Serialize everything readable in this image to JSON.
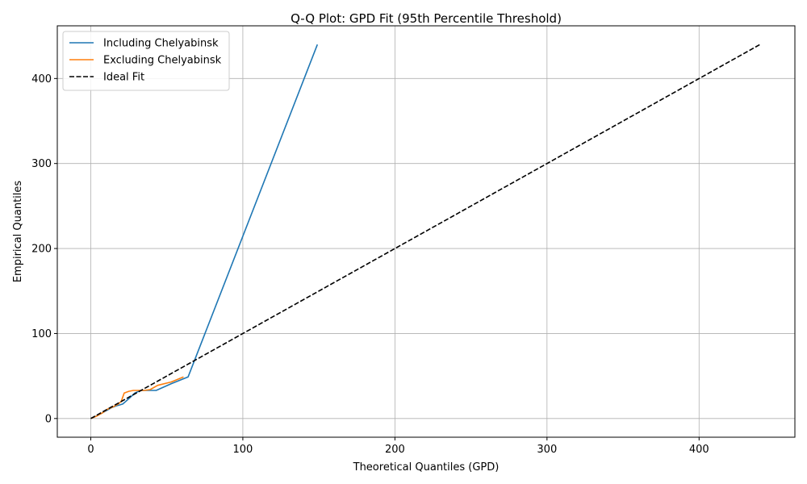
{
  "chart_data": {
    "type": "line",
    "title": "Q-Q Plot: GPD Fit (95th Percentile Threshold)",
    "xlabel": "Theoretical Quantiles (GPD)",
    "ylabel": "Empirical Quantiles",
    "xlim": [
      -22,
      463
    ],
    "ylim": [
      -22,
      462
    ],
    "xticks": [
      0,
      100,
      200,
      300,
      400
    ],
    "yticks": [
      0,
      100,
      200,
      300,
      400
    ],
    "grid": true,
    "legend_position": "top-left",
    "series": [
      {
        "name": "Including Chelyabinsk",
        "color": "#1f77b4",
        "dash": "solid",
        "points": [
          [
            0,
            0
          ],
          [
            5,
            4
          ],
          [
            10,
            9
          ],
          [
            14,
            13
          ],
          [
            17,
            15
          ],
          [
            19,
            16
          ],
          [
            21,
            17
          ],
          [
            23,
            20
          ],
          [
            26,
            25
          ],
          [
            29,
            30
          ],
          [
            33,
            33
          ],
          [
            38,
            33
          ],
          [
            43,
            33
          ],
          [
            53,
            41
          ],
          [
            64,
            49
          ],
          [
            149,
            440
          ]
        ]
      },
      {
        "name": "Excluding Chelyabinsk",
        "color": "#ff7f0e",
        "dash": "solid",
        "points": [
          [
            0,
            0
          ],
          [
            4,
            3
          ],
          [
            8,
            7
          ],
          [
            11,
            11
          ],
          [
            15,
            14
          ],
          [
            18,
            17
          ],
          [
            20,
            20
          ],
          [
            22,
            30
          ],
          [
            25,
            32
          ],
          [
            28,
            33
          ],
          [
            31,
            33
          ],
          [
            35,
            33
          ],
          [
            39,
            34
          ],
          [
            44,
            39
          ],
          [
            53,
            43
          ],
          [
            61,
            49
          ]
        ]
      },
      {
        "name": "Ideal Fit",
        "color": "#000000",
        "dash": "dashed",
        "points": [
          [
            0,
            0
          ],
          [
            440,
            440
          ]
        ]
      }
    ]
  }
}
